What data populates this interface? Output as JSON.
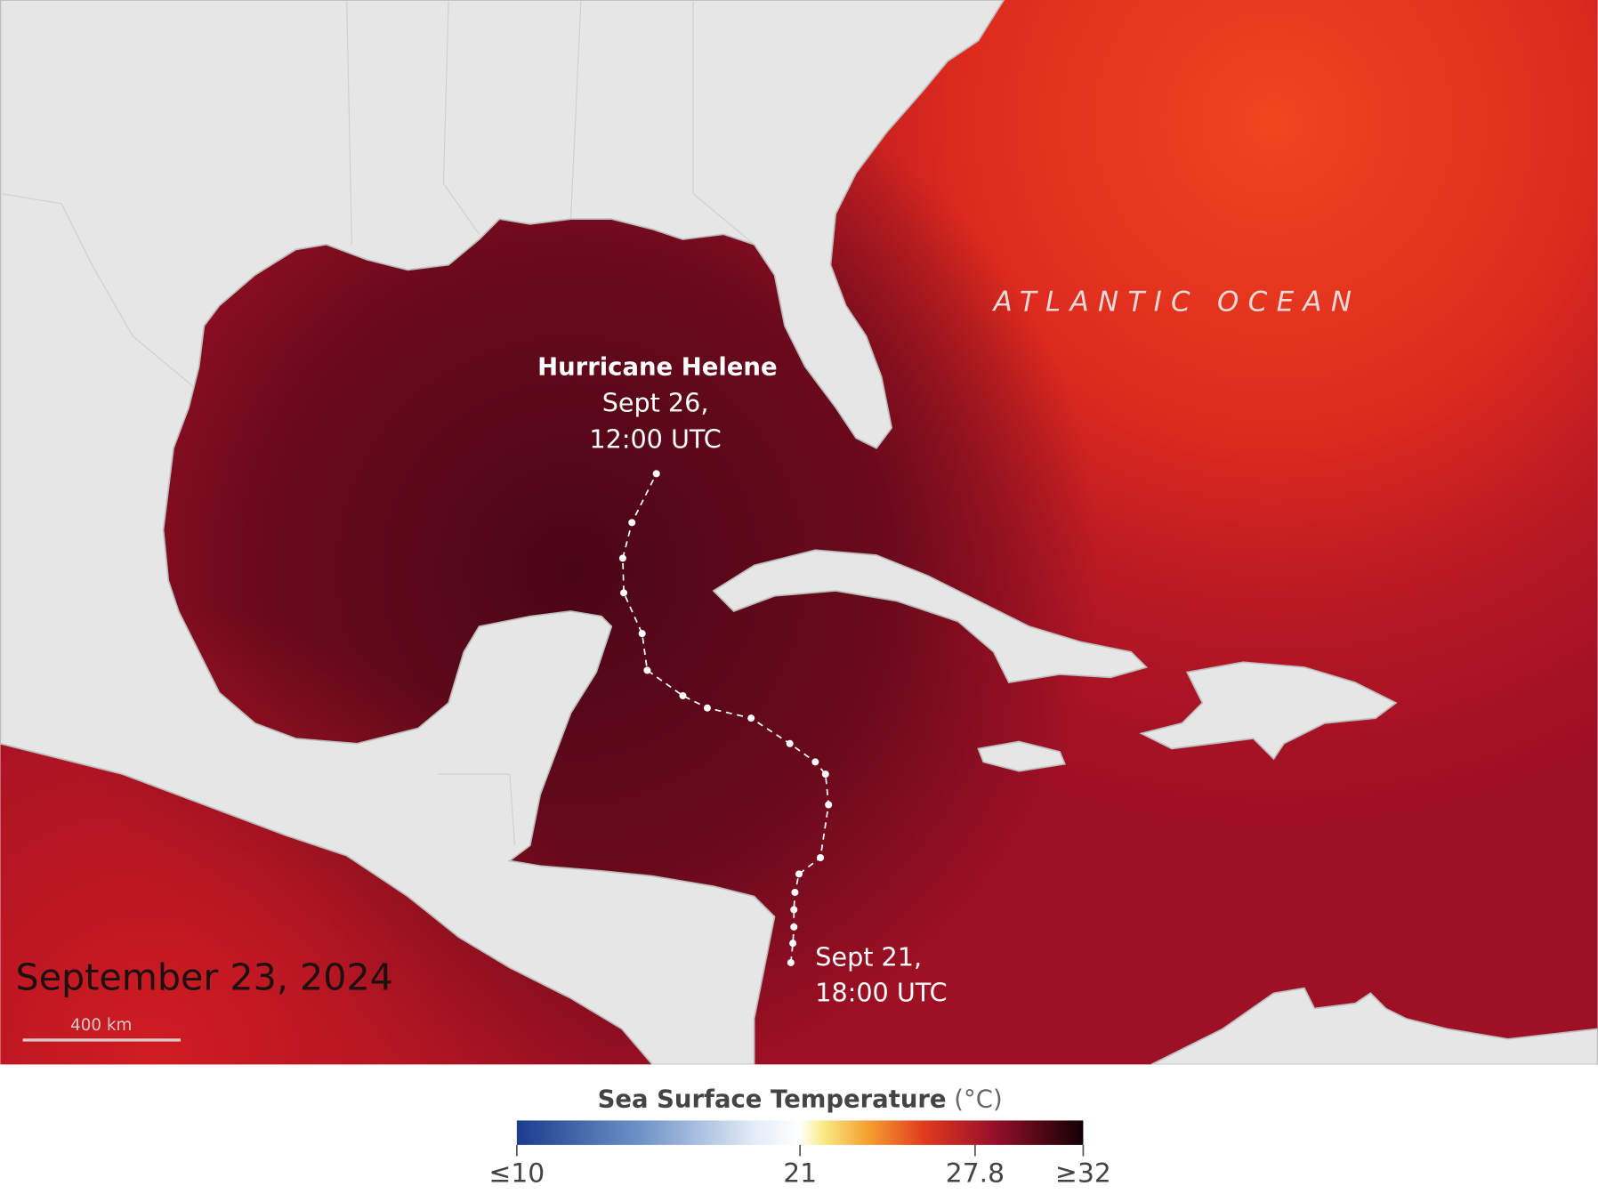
{
  "map": {
    "ocean_label": "ATLANTIC OCEAN",
    "storm": {
      "name": "Hurricane Helene",
      "end_date": "Sept 26,",
      "end_time": "12:00 UTC",
      "start_date": "Sept 21,",
      "start_time": "18:00 UTC"
    },
    "date": "September 23, 2024",
    "scale_bar": "400 km"
  },
  "colorbar": {
    "title": "Sea Surface Temperature",
    "unit": "(°C)",
    "range": [
      10,
      32
    ],
    "ticks": [
      {
        "value": 10,
        "label": "≤10"
      },
      21,
      27.8,
      {
        "value": 32,
        "label": "≥32"
      }
    ]
  }
}
